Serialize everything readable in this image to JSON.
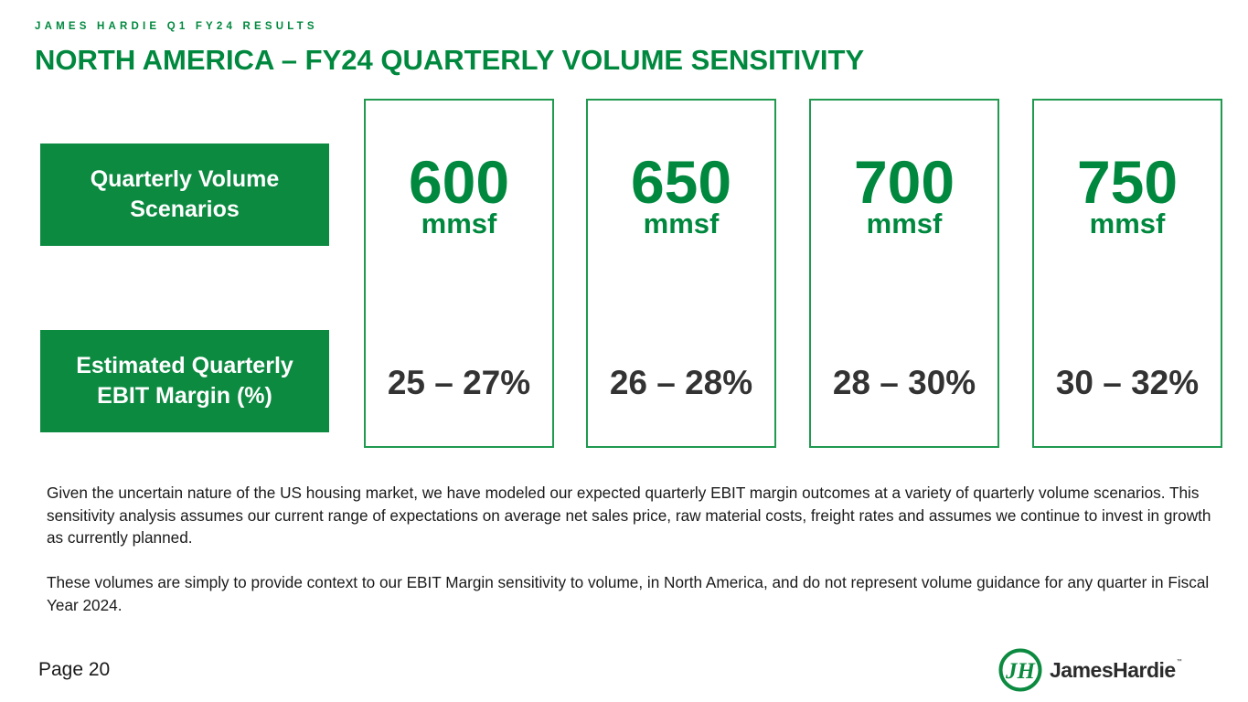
{
  "header": {
    "kicker": "JAMES HARDIE Q1 FY24 RESULTS",
    "title": "NORTH AMERICA – FY24 QUARTERLY VOLUME SENSITIVITY"
  },
  "row_labels": {
    "volume": "Quarterly Volume Scenarios",
    "margin": "Estimated Quarterly EBIT Margin (%)"
  },
  "scenarios": [
    {
      "volume": "600",
      "unit": "mmsf",
      "margin": "25 – 27%"
    },
    {
      "volume": "650",
      "unit": "mmsf",
      "margin": "26 – 28%"
    },
    {
      "volume": "700",
      "unit": "mmsf",
      "margin": "28 – 30%"
    },
    {
      "volume": "750",
      "unit": "mmsf",
      "margin": "30 – 32%"
    }
  ],
  "body": {
    "paragraph_1": "Given the uncertain nature of the US housing market, we have modeled our expected quarterly EBIT margin outcomes at a variety of quarterly volume scenarios.  This sensitivity analysis assumes our current range of expectations on average net sales price, raw material costs, freight rates and assumes we continue to invest in growth as currently planned.",
    "paragraph_2": "These volumes are simply to provide context to our EBIT Margin sensitivity to volume, in North America, and do not represent volume guidance for any quarter in Fiscal Year 2024."
  },
  "footer": {
    "page": "Page 20",
    "logo_text": "JamesHardie",
    "logo_tm": "™"
  },
  "colors": {
    "brand_green": "#00883e",
    "label_box_green": "#0b8a40",
    "card_border": "#1f9a4f"
  }
}
